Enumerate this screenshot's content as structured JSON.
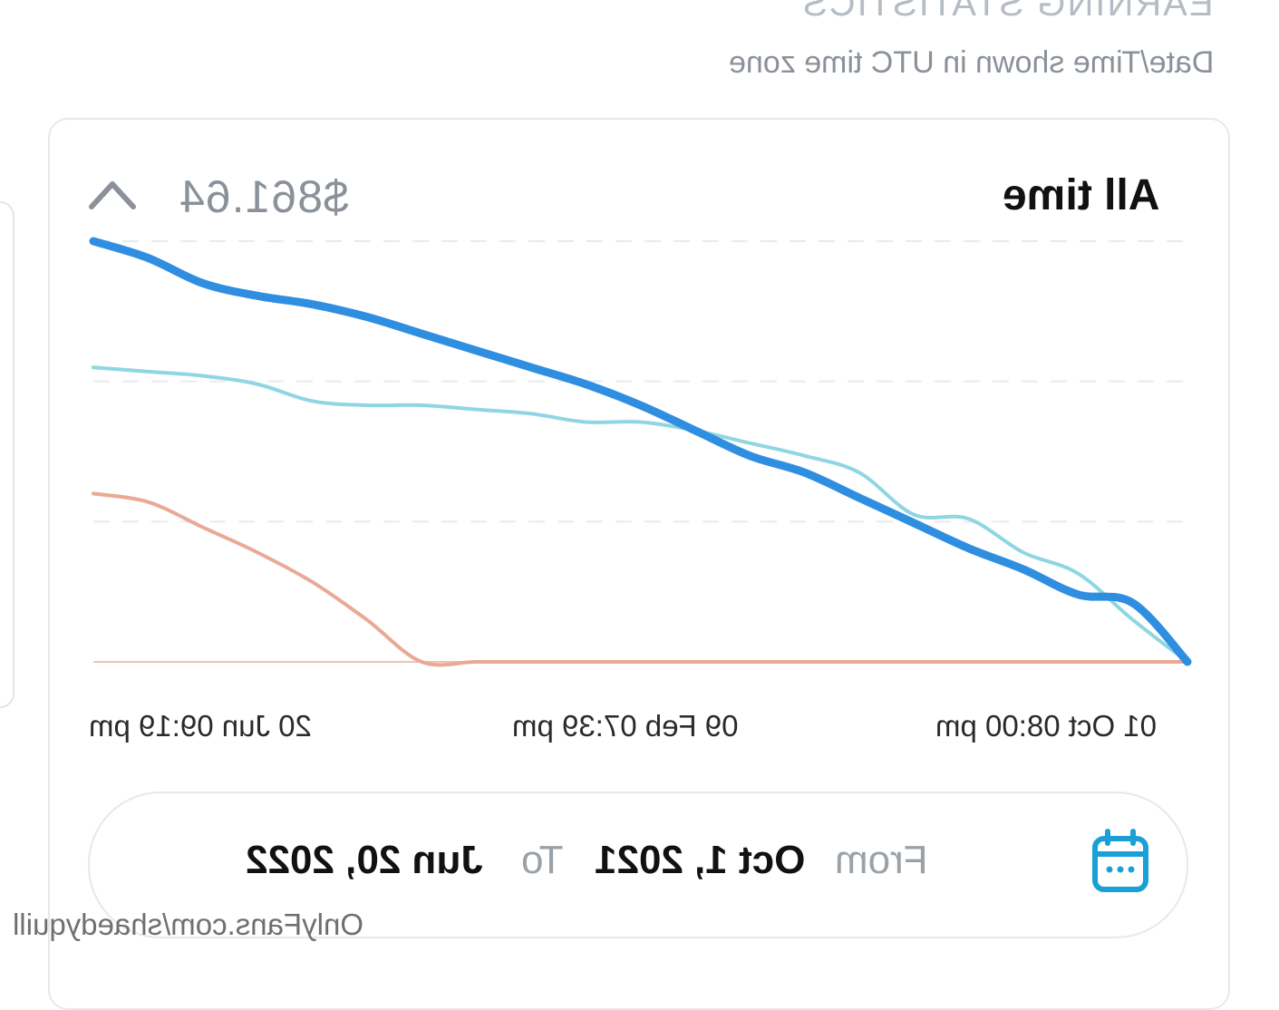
{
  "header": {
    "title": "EARNING STATISTICS",
    "subtitle": "Date/Time shown in UTC time zone"
  },
  "card": {
    "period_label": "All time",
    "total": "$861.64",
    "collapse_icon": "chevron-up-icon"
  },
  "chart_data": {
    "type": "line",
    "x_ticks": [
      "01 Oct 08:00 pm",
      "09 Feb 07:39 pm",
      "20 Jun 09:19 pm"
    ],
    "x_direction": "mirrored (time increases right-to-left)",
    "y_range": [
      0,
      1
    ],
    "grid": true,
    "series": [
      {
        "color": "#2f8ee0",
        "values": [
          0.0,
          0.14,
          0.16,
          0.22,
          0.27,
          0.33,
          0.39,
          0.45,
          0.49,
          0.55,
          0.61,
          0.66,
          0.7,
          0.74,
          0.78,
          0.82,
          0.85,
          0.87,
          0.9,
          0.96,
          1.0
        ]
      },
      {
        "color": "#8fd6e3",
        "values": [
          0.0,
          0.1,
          0.21,
          0.26,
          0.34,
          0.35,
          0.45,
          0.49,
          0.52,
          0.55,
          0.57,
          0.57,
          0.59,
          0.6,
          0.61,
          0.61,
          0.62,
          0.66,
          0.68,
          0.69,
          0.7
        ]
      },
      {
        "color": "#e8aa95",
        "values": [
          0.0,
          0.0,
          0.0,
          0.0,
          0.0,
          0.0,
          0.0,
          0.0,
          0.0,
          0.0,
          0.0,
          0.0,
          0.0,
          0.0,
          0.0,
          0.1,
          0.19,
          0.26,
          0.32,
          0.38,
          0.4
        ]
      }
    ]
  },
  "date_range": {
    "from_label": "From",
    "from_value": "Oct 1, 2021",
    "to_label": "To",
    "to_value": "Jun 20, 2022",
    "icon": "calendar-icon",
    "icon_color": "#1aa0d6"
  },
  "watermark": "OnlyFans.com/shaedyquill"
}
